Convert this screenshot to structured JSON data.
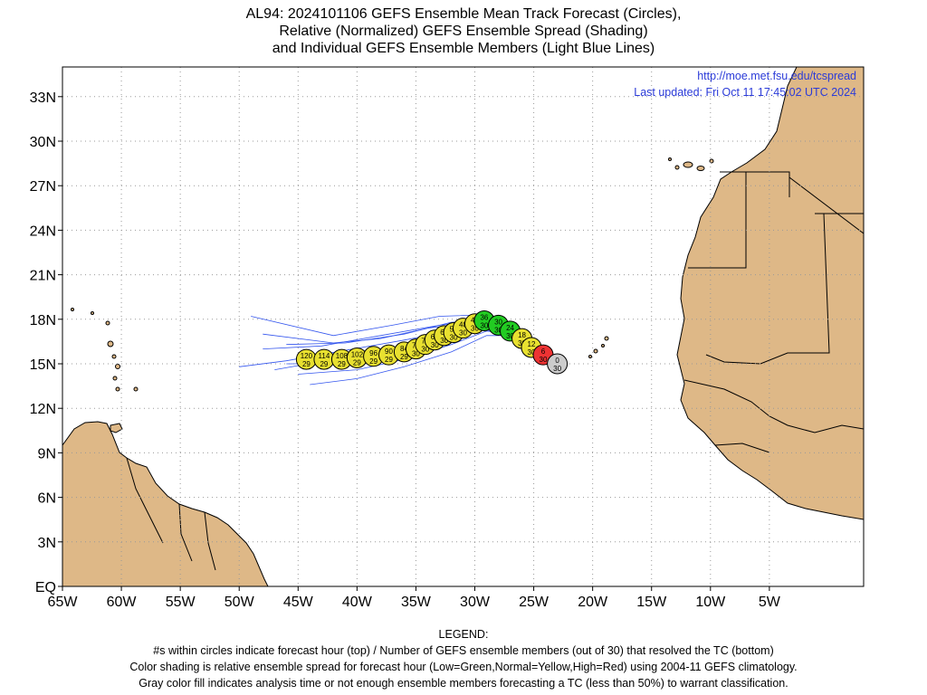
{
  "title": {
    "line1": "AL94: 2024101106 GEFS Ensemble Mean Track Forecast (Circles),",
    "line2": "Relative (Normalized) GEFS Ensemble Spread (Shading)",
    "line3": "and Individual GEFS Ensemble Members (Light Blue Lines)"
  },
  "source_url": "http://moe.met.fsu.edu/tcspread",
  "last_updated": "Last updated: Fri Oct 11 17:45:02 UTC 2024",
  "axes": {
    "y_ticks": [
      "33N",
      "30N",
      "27N",
      "24N",
      "21N",
      "18N",
      "15N",
      "12N",
      "9N",
      "6N",
      "3N",
      "EQ"
    ],
    "x_ticks": [
      "65W",
      "60W",
      "55W",
      "50W",
      "45W",
      "40W",
      "35W",
      "30W",
      "25W",
      "20W",
      "15W",
      "10W",
      "5W"
    ]
  },
  "legend": {
    "heading": "LEGEND:",
    "line1": "#s within circles indicate forecast hour (top) / Number of GEFS ensemble members (out of 30) that resolved the TC (bottom)",
    "line2": "Color shading is relative ensemble spread for forecast hour (Low=Green,Normal=Yellow,High=Red) using 2004-11 GEFS climatology.",
    "line3": "Gray color fill indicates analysis time or not enough ensemble members forecasting a TC (less than 50%) to warrant classification."
  },
  "colors": {
    "land": "#deb887",
    "member_track": "#3355ee",
    "low_spread": "#22cc22",
    "normal_spread": "#e8e030",
    "high_spread": "#ee3333",
    "analysis": "#cccccc",
    "link": "#2b3bd8"
  },
  "chart_data": {
    "type": "map",
    "xlim": [
      -65,
      3
    ],
    "ylim": [
      0,
      35
    ],
    "grid": true,
    "mean_track": [
      {
        "hour": "0",
        "members": "30",
        "lon": -23.0,
        "lat": 15.0,
        "spread": "analysis"
      },
      {
        "hour": "6",
        "members": "30",
        "lon": -24.2,
        "lat": 15.6,
        "spread": "high"
      },
      {
        "hour": "12",
        "members": "30",
        "lon": -25.2,
        "lat": 16.1,
        "spread": "normal"
      },
      {
        "hour": "18",
        "members": "30",
        "lon": -26.0,
        "lat": 16.7,
        "spread": "normal"
      },
      {
        "hour": "24",
        "members": "30",
        "lon": -27.0,
        "lat": 17.2,
        "spread": "low"
      },
      {
        "hour": "30",
        "members": "30",
        "lon": -28.0,
        "lat": 17.6,
        "spread": "low"
      },
      {
        "hour": "36",
        "members": "30",
        "lon": -29.2,
        "lat": 17.9,
        "spread": "low"
      },
      {
        "hour": "42",
        "members": "30",
        "lon": -30.0,
        "lat": 17.7,
        "spread": "normal"
      },
      {
        "hour": "48",
        "members": "30",
        "lon": -31.0,
        "lat": 17.4,
        "spread": "normal"
      },
      {
        "hour": "54",
        "members": "30",
        "lon": -31.8,
        "lat": 17.1,
        "spread": "normal"
      },
      {
        "hour": "60",
        "members": "30",
        "lon": -32.6,
        "lat": 16.9,
        "spread": "normal"
      },
      {
        "hour": "66",
        "members": "30",
        "lon": -33.4,
        "lat": 16.6,
        "spread": "normal"
      },
      {
        "hour": "72",
        "members": "30",
        "lon": -34.2,
        "lat": 16.3,
        "spread": "normal"
      },
      {
        "hour": "78",
        "members": "30",
        "lon": -35.0,
        "lat": 16.0,
        "spread": "normal"
      },
      {
        "hour": "84",
        "members": "29",
        "lon": -36.0,
        "lat": 15.8,
        "spread": "normal"
      },
      {
        "hour": "90",
        "members": "29",
        "lon": -37.3,
        "lat": 15.6,
        "spread": "normal"
      },
      {
        "hour": "96",
        "members": "29",
        "lon": -38.6,
        "lat": 15.5,
        "spread": "normal"
      },
      {
        "hour": "102",
        "members": "29",
        "lon": -40.0,
        "lat": 15.4,
        "spread": "normal"
      },
      {
        "hour": "108",
        "members": "29",
        "lon": -41.3,
        "lat": 15.3,
        "spread": "normal"
      },
      {
        "hour": "114",
        "members": "29",
        "lon": -42.8,
        "lat": 15.3,
        "spread": "normal"
      },
      {
        "hour": "120",
        "members": "29",
        "lon": -44.3,
        "lat": 15.3,
        "spread": "normal"
      }
    ],
    "member_tracks": [
      [
        [
          -24.5,
          16.2
        ],
        [
          -27,
          17.4
        ],
        [
          -29.2,
          18.3
        ],
        [
          -33,
          18.2
        ],
        [
          -37,
          17.6
        ],
        [
          -42,
          16.9
        ],
        [
          -49,
          18.2
        ]
      ],
      [
        [
          -24.5,
          16.2
        ],
        [
          -27,
          17.3
        ],
        [
          -29,
          18.0
        ],
        [
          -33,
          17.6
        ],
        [
          -38,
          16.9
        ],
        [
          -43,
          16.2
        ],
        [
          -48,
          16.0
        ]
      ],
      [
        [
          -24.5,
          16.2
        ],
        [
          -27,
          17.2
        ],
        [
          -29,
          17.7
        ],
        [
          -32,
          17.2
        ],
        [
          -36,
          16.6
        ],
        [
          -41,
          15.9
        ],
        [
          -46,
          15.2
        ],
        [
          -50,
          14.8
        ]
      ],
      [
        [
          -24.5,
          16.2
        ],
        [
          -27,
          17.1
        ],
        [
          -29.5,
          17.5
        ],
        [
          -33,
          16.8
        ],
        [
          -37,
          16.0
        ],
        [
          -42,
          15.3
        ],
        [
          -47,
          14.6
        ]
      ],
      [
        [
          -24.5,
          16.2
        ],
        [
          -26.8,
          17.0
        ],
        [
          -29,
          17.2
        ],
        [
          -32,
          16.3
        ],
        [
          -36,
          15.3
        ],
        [
          -40,
          14.6
        ],
        [
          -45,
          14.3
        ]
      ],
      [
        [
          -24.5,
          16.2
        ],
        [
          -26.8,
          16.9
        ],
        [
          -29,
          16.9
        ],
        [
          -32,
          15.8
        ],
        [
          -36,
          14.8
        ],
        [
          -40,
          14.0
        ],
        [
          -44,
          13.6
        ]
      ],
      [
        [
          -24.5,
          16.2
        ],
        [
          -27,
          17.1
        ],
        [
          -30,
          17.8
        ],
        [
          -34,
          17.4
        ],
        [
          -38,
          16.7
        ],
        [
          -42,
          16.4
        ],
        [
          -48,
          17.0
        ]
      ],
      [
        [
          -24.5,
          16.2
        ],
        [
          -27,
          17.0
        ],
        [
          -30,
          17.4
        ],
        [
          -34,
          16.5
        ],
        [
          -38,
          15.5
        ],
        [
          -42,
          15.0
        ],
        [
          -46,
          15.0
        ]
      ],
      [
        [
          -24.5,
          16.2
        ],
        [
          -27,
          17.2
        ],
        [
          -29.5,
          17.9
        ],
        [
          -32,
          17.8
        ],
        [
          -36,
          17.0
        ],
        [
          -41,
          16.4
        ],
        [
          -46,
          16.3
        ]
      ]
    ]
  }
}
